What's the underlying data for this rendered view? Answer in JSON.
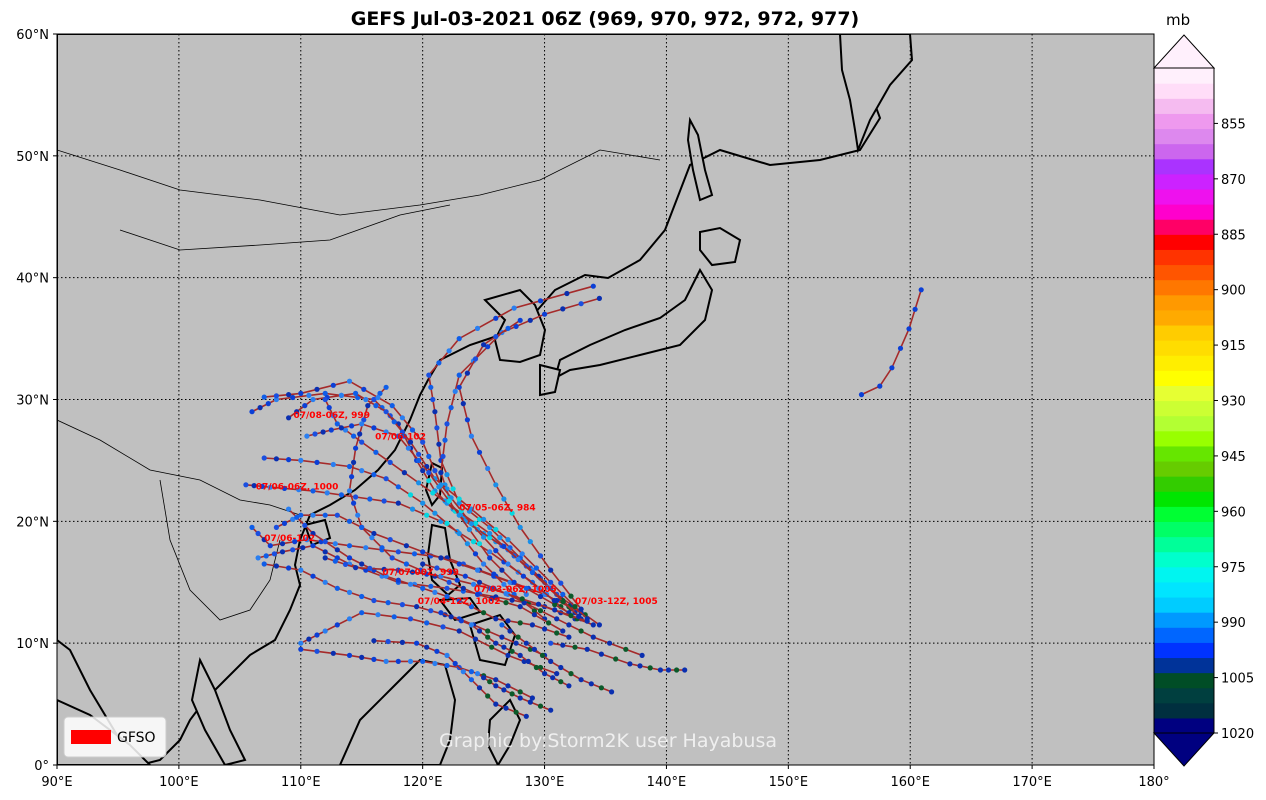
{
  "title": "GEFS Jul-03-2021 06Z (969, 970, 972, 972, 977)",
  "watermark": "Graphic by:Storm2K user Hayabusa",
  "legend": {
    "label": "GFSO",
    "color": "#ff0000"
  },
  "map": {
    "lon_range": [
      90,
      180
    ],
    "lat_range": [
      0,
      60
    ],
    "lon_ticks": [
      "90°E",
      "100°E",
      "110°E",
      "120°E",
      "130°E",
      "140°E",
      "150°E",
      "160°E",
      "170°E",
      "180°"
    ],
    "lat_ticks": [
      "0°",
      "10°N",
      "20°N",
      "30°N",
      "40°N",
      "50°N",
      "60°N"
    ],
    "ocean_color": "#c0c0c0",
    "track_color": "#a52a2a"
  },
  "colorbar": {
    "unit": "mb",
    "tick_labels": [
      "1020",
      "1005",
      "990",
      "975",
      "960",
      "945",
      "930",
      "915",
      "900",
      "885",
      "870",
      "855"
    ],
    "colors": [
      "#000080",
      "#002f3f",
      "#003f3f",
      "#004d26",
      "#003399",
      "#0033ff",
      "#0066ff",
      "#0099ff",
      "#00ccff",
      "#00e5ff",
      "#00f5f0",
      "#00ffcc",
      "#00ff99",
      "#00ff66",
      "#00ff33",
      "#00e600",
      "#33cc00",
      "#66cc00",
      "#66e600",
      "#99ff00",
      "#b3ff33",
      "#ccff33",
      "#e6ff33",
      "#ffff00",
      "#ffee00",
      "#ffdd00",
      "#ffcc00",
      "#ffaa00",
      "#ff9900",
      "#ff7700",
      "#ff5500",
      "#ff3300",
      "#ff0000",
      "#ff0066",
      "#ff00cc",
      "#ee11ee",
      "#cc22ff",
      "#aa33ff",
      "#cc66ee",
      "#dd88ee",
      "#ee99ee",
      "#f5bbf0",
      "#ffddf8",
      "#fff0fc"
    ]
  },
  "annotations": [
    {
      "text": "07/03-06Z, 1005",
      "lon": 124.2,
      "lat": 14.2
    },
    {
      "text": "07/03-12Z, 1005",
      "lon": 132.5,
      "lat": 13.2
    },
    {
      "text": "07/04-12Z, 1002",
      "lon": 119.6,
      "lat": 13.2
    },
    {
      "text": "07/07-00Z, 999",
      "lon": 116.7,
      "lat": 15.6
    },
    {
      "text": "07/05-06Z, 984",
      "lon": 123.0,
      "lat": 20.9
    },
    {
      "text": "07/06-102",
      "lon": 107.0,
      "lat": 18.4
    },
    {
      "text": "07/06-06Z, 1000",
      "lon": 106.3,
      "lat": 22.6
    },
    {
      "text": "07/06-102",
      "lon": 116.1,
      "lat": 26.7
    },
    {
      "text": "07/08-06Z, 999",
      "lon": 109.4,
      "lat": 28.5
    }
  ],
  "tracks": [
    [
      [
        133.0,
        12.0
      ],
      [
        130.5,
        14.5
      ],
      [
        128.0,
        17.0
      ],
      [
        125.5,
        19.5
      ],
      [
        123.0,
        21.5
      ],
      [
        121.5,
        25.0
      ],
      [
        121.0,
        29.0
      ],
      [
        120.5,
        32.0
      ],
      [
        123.0,
        35.0
      ],
      [
        127.5,
        37.5
      ],
      [
        134.0,
        39.3
      ]
    ],
    [
      [
        134.5,
        11.5
      ],
      [
        131.0,
        14.0
      ],
      [
        128.0,
        17.0
      ],
      [
        125.0,
        19.0
      ],
      [
        122.5,
        21.0
      ],
      [
        121.5,
        24.0
      ],
      [
        122.0,
        28.0
      ],
      [
        123.0,
        32.0
      ],
      [
        126.5,
        35.5
      ],
      [
        130.0,
        37.0
      ],
      [
        134.5,
        38.3
      ]
    ],
    [
      [
        132.5,
        12.0
      ],
      [
        129.0,
        15.0
      ],
      [
        125.5,
        17.5
      ],
      [
        121.5,
        20.0
      ],
      [
        118.0,
        21.5
      ],
      [
        114.5,
        22.0
      ],
      [
        111.0,
        22.5
      ],
      [
        107.5,
        22.8
      ],
      [
        105.5,
        23.0
      ]
    ],
    [
      [
        133.0,
        12.5
      ],
      [
        130.0,
        14.0
      ],
      [
        126.0,
        15.5
      ],
      [
        122.0,
        17.0
      ],
      [
        118.0,
        17.5
      ],
      [
        114.0,
        18.0
      ],
      [
        110.5,
        18.5
      ],
      [
        107.5,
        18.0
      ],
      [
        106.0,
        19.5
      ]
    ],
    [
      [
        134.0,
        11.5
      ],
      [
        130.0,
        13.0
      ],
      [
        126.0,
        13.8
      ],
      [
        122.0,
        14.5
      ],
      [
        118.0,
        15.0
      ],
      [
        114.0,
        16.5
      ],
      [
        111.0,
        18.0
      ],
      [
        108.5,
        17.5
      ],
      [
        106.5,
        17.0
      ]
    ],
    [
      [
        132.5,
        12.5
      ],
      [
        129.5,
        15.5
      ],
      [
        126.5,
        18.0
      ],
      [
        123.5,
        20.0
      ],
      [
        121.0,
        22.5
      ],
      [
        119.5,
        25.0
      ],
      [
        118.0,
        28.0
      ],
      [
        116.0,
        30.0
      ],
      [
        112.0,
        30.5
      ],
      [
        108.0,
        30.0
      ],
      [
        106.0,
        29.0
      ]
    ],
    [
      [
        133.5,
        12.0
      ],
      [
        130.5,
        15.0
      ],
      [
        127.0,
        18.5
      ],
      [
        124.0,
        21.0
      ],
      [
        121.0,
        23.5
      ],
      [
        119.0,
        26.5
      ],
      [
        117.0,
        29.0
      ],
      [
        114.5,
        30.5
      ],
      [
        111.0,
        30.0
      ],
      [
        109.0,
        28.5
      ]
    ],
    [
      [
        132.0,
        12.5
      ],
      [
        128.5,
        14.5
      ],
      [
        124.5,
        16.0
      ],
      [
        120.0,
        17.5
      ],
      [
        116.0,
        19.0
      ],
      [
        113.0,
        20.5
      ],
      [
        110.0,
        20.5
      ],
      [
        108.0,
        19.5
      ]
    ],
    [
      [
        130.0,
        9.0
      ],
      [
        126.5,
        10.5
      ],
      [
        123.0,
        12.0
      ],
      [
        119.5,
        13.0
      ],
      [
        116.0,
        13.5
      ],
      [
        113.0,
        14.5
      ],
      [
        110.0,
        16.0
      ],
      [
        107.0,
        16.5
      ]
    ],
    [
      [
        131.0,
        7.5
      ],
      [
        127.0,
        9.0
      ],
      [
        123.0,
        11.0
      ],
      [
        119.0,
        12.0
      ],
      [
        115.0,
        12.5
      ],
      [
        112.0,
        11.0
      ],
      [
        110.0,
        10.0
      ]
    ],
    [
      [
        129.0,
        5.5
      ],
      [
        126.0,
        7.0
      ],
      [
        123.0,
        8.0
      ],
      [
        120.0,
        8.5
      ],
      [
        117.0,
        8.5
      ],
      [
        114.0,
        9.0
      ],
      [
        110.0,
        9.5
      ]
    ],
    [
      [
        128.5,
        4.0
      ],
      [
        126.0,
        5.0
      ],
      [
        124.0,
        7.0
      ],
      [
        122.0,
        9.0
      ],
      [
        119.5,
        10.0
      ],
      [
        116.0,
        10.2
      ]
    ],
    [
      [
        130.0,
        12.0
      ],
      [
        127.5,
        14.0
      ],
      [
        125.0,
        16.5
      ],
      [
        123.0,
        19.0
      ],
      [
        120.0,
        21.5
      ],
      [
        117.0,
        23.5
      ],
      [
        114.0,
        24.5
      ],
      [
        110.0,
        25.0
      ],
      [
        107.0,
        25.2
      ]
    ],
    [
      [
        131.5,
        11.0
      ],
      [
        128.0,
        13.0
      ],
      [
        124.5,
        14.0
      ],
      [
        121.0,
        15.5
      ],
      [
        117.5,
        17.0
      ],
      [
        115.0,
        19.5
      ],
      [
        114.0,
        22.5
      ],
      [
        114.5,
        26.0
      ],
      [
        115.5,
        29.5
      ],
      [
        117.0,
        31.0
      ]
    ],
    [
      [
        132.0,
        10.5
      ],
      [
        129.0,
        11.5
      ],
      [
        126.0,
        12.0
      ],
      [
        123.0,
        13.5
      ],
      [
        120.0,
        14.5
      ],
      [
        117.0,
        15.5
      ],
      [
        114.0,
        17.0
      ],
      [
        111.0,
        19.0
      ],
      [
        109.0,
        21.0
      ]
    ],
    [
      [
        133.0,
        12.8
      ],
      [
        130.5,
        16.0
      ],
      [
        128.0,
        19.5
      ],
      [
        126.0,
        23.0
      ],
      [
        124.0,
        27.0
      ],
      [
        123.0,
        31.0
      ],
      [
        125.0,
        34.5
      ],
      [
        128.0,
        36.5
      ]
    ],
    [
      [
        138.0,
        9.0
      ],
      [
        134.0,
        10.5
      ],
      [
        131.0,
        12.0
      ],
      [
        127.0,
        14.0
      ],
      [
        123.5,
        15.5
      ],
      [
        120.0,
        16.5
      ]
    ],
    [
      [
        141.5,
        7.8
      ],
      [
        139.5,
        7.8
      ],
      [
        137.0,
        8.3
      ],
      [
        133.5,
        9.5
      ],
      [
        130.5,
        10.0
      ]
    ],
    [
      [
        135.5,
        6.0
      ],
      [
        133.0,
        7.0
      ],
      [
        130.5,
        8.5
      ],
      [
        128.5,
        10.0
      ],
      [
        126.5,
        11.5
      ]
    ],
    [
      [
        130.5,
        4.5
      ],
      [
        128.0,
        5.5
      ],
      [
        126.0,
        6.5
      ],
      [
        124.5,
        7.5
      ]
    ],
    [
      [
        132.0,
        6.5
      ],
      [
        130.0,
        7.5
      ],
      [
        128.0,
        9.0
      ],
      [
        126.0,
        10.0
      ],
      [
        124.0,
        11.5
      ],
      [
        121.5,
        12.5
      ]
    ],
    [
      [
        133.5,
        11.8
      ],
      [
        129.5,
        13.2
      ],
      [
        125.5,
        14.5
      ],
      [
        121.5,
        15.5
      ],
      [
        118.0,
        16.0
      ],
      [
        114.5,
        16.2
      ],
      [
        112.0,
        17.0
      ]
    ],
    [
      [
        132.8,
        12.2
      ],
      [
        129.0,
        15.8
      ],
      [
        125.5,
        19.0
      ],
      [
        122.0,
        21.5
      ],
      [
        118.5,
        24.0
      ],
      [
        115.0,
        26.5
      ],
      [
        113.0,
        28.0
      ],
      [
        112.0,
        30.0
      ]
    ],
    [
      [
        130.8,
        13.5
      ],
      [
        127.0,
        16.5
      ],
      [
        124.0,
        19.8
      ],
      [
        121.5,
        23.0
      ],
      [
        120.0,
        26.5
      ],
      [
        117.5,
        29.5
      ],
      [
        114.0,
        31.5
      ],
      [
        110.0,
        30.5
      ],
      [
        107.0,
        30.2
      ]
    ],
    [
      [
        128.5,
        14.0
      ],
      [
        125.5,
        17.0
      ],
      [
        123.0,
        20.5
      ],
      [
        120.5,
        24.0
      ],
      [
        118.0,
        27.0
      ],
      [
        115.0,
        28.0
      ],
      [
        112.5,
        27.5
      ],
      [
        110.5,
        27.0
      ]
    ]
  ],
  "separate_track": [
    [
      156.0,
      30.4
    ],
    [
      157.5,
      31.1
    ],
    [
      158.5,
      32.6
    ],
    [
      159.2,
      34.2
    ],
    [
      159.9,
      35.8
    ],
    [
      160.4,
      37.4
    ],
    [
      160.9,
      39.0
    ]
  ]
}
